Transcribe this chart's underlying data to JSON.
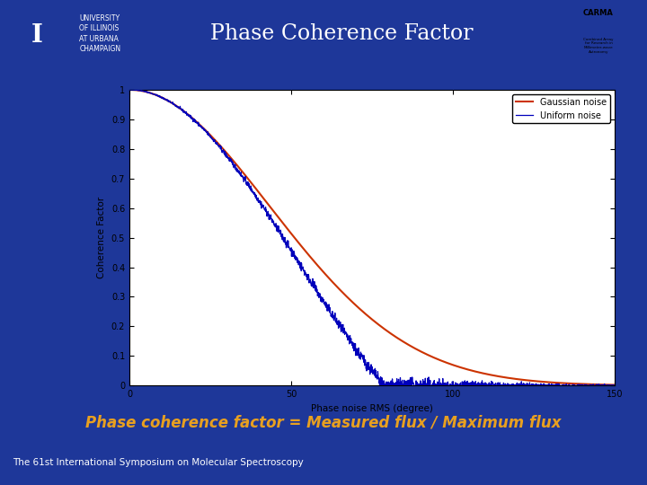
{
  "title": "Phase Coherence Factor",
  "subtitle": "Phase coherence factor = Measured flux / Maximum flux",
  "footer": "The 61st International Symposium on Molecular Spectroscopy",
  "uni_text": [
    "UNIVERSITY",
    "OF ILLINOIS",
    "AT URBANA",
    "CHAMPAIGN"
  ],
  "xlabel": "Phase noise RMS (degree)",
  "ylabel": "Coherence Factor",
  "legend_gaussian": "Gaussian noise",
  "legend_uniform": "Uniform noise",
  "bg_color": "#1e3799",
  "plot_bg": "#ffffff",
  "header_bar_color": "#b5651d",
  "subtitle_color": "#e8a020",
  "footer_color": "#ffffff",
  "gaussian_color": "#cc3300",
  "uniform_color": "#0000bb",
  "logo_color": "#c07820",
  "xmax": 150,
  "ymin": 0,
  "ymax": 1,
  "ytick_labels": [
    "0",
    "0.1",
    "0.2",
    "0.3",
    "0.4",
    "0.5",
    "0.6",
    "0.7",
    "0.8",
    "0.9",
    "1"
  ],
  "xticks": [
    0,
    50,
    100,
    150
  ]
}
